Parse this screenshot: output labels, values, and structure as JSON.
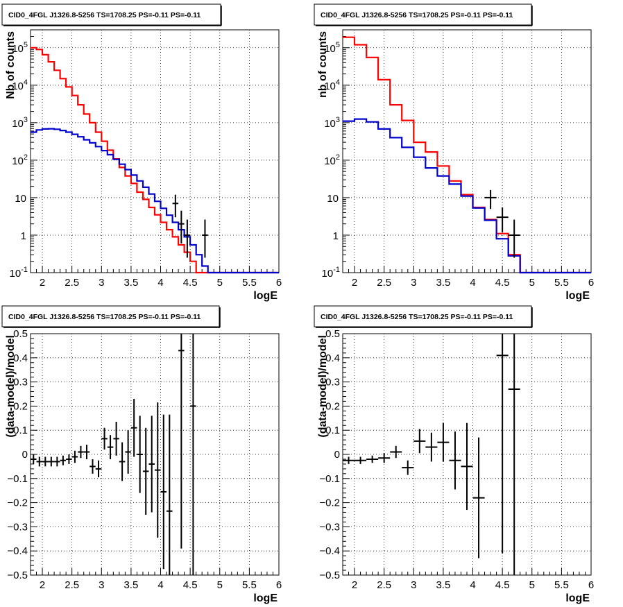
{
  "chart_data": [
    {
      "type": "step-histogram",
      "title": "CID0_4FGL J1326.8-5256 TS=1708.25 PS=-0.11 PS=-0.11",
      "xlabel": "logE",
      "ylabel": "Nb of counts",
      "xlim": [
        1.8,
        6.0
      ],
      "ylim": [
        0.1,
        300000
      ],
      "yscale": "log",
      "grid": true,
      "x_ticks": [
        "2",
        "2.5",
        "3",
        "3.5",
        "4",
        "4.5",
        "5",
        "5.5",
        "6"
      ],
      "y_ticks": [
        "10^-1",
        "1",
        "10",
        "10^2",
        "10^3",
        "10^4",
        "10^5"
      ],
      "bin_edges": [
        1.8,
        1.9,
        2.0,
        2.1,
        2.2,
        2.3,
        2.4,
        2.5,
        2.6,
        2.7,
        2.8,
        2.9,
        3.0,
        3.1,
        3.2,
        3.3,
        3.4,
        3.5,
        3.6,
        3.7,
        3.8,
        3.9,
        4.0,
        4.1,
        4.2,
        4.3,
        4.4,
        4.5,
        4.6,
        4.7,
        4.8,
        4.9,
        5.0,
        5.1,
        5.2,
        5.3,
        5.4,
        5.5,
        5.6,
        5.7,
        5.8,
        5.9,
        6.0
      ],
      "series": [
        {
          "color": "#ff0000",
          "values": [
            100000,
            90000,
            65000,
            42000,
            25000,
            15000,
            9000,
            5300,
            3000,
            1700,
            1000,
            560,
            320,
            185,
            108,
            64,
            38,
            24,
            14,
            9,
            5.5,
            3.5,
            2.2,
            1.4,
            0.9,
            0.55,
            0.35,
            0.2,
            0.1,
            0.1,
            0.1,
            0.1,
            0.1,
            0.1,
            0.1,
            0.1,
            0.1,
            0.1,
            0.1,
            0.1,
            0.1,
            0.1
          ]
        },
        {
          "color": "#0000cc",
          "values": [
            560,
            640,
            680,
            690,
            670,
            620,
            560,
            490,
            420,
            350,
            290,
            230,
            180,
            140,
            105,
            78,
            56,
            40,
            28,
            19,
            12.5,
            8,
            5.2,
            3.4,
            2.2,
            1.4,
            0.9,
            0.55,
            0.3,
            0.15,
            0.1,
            0.1,
            0.1,
            0.1,
            0.1,
            0.1,
            0.1,
            0.1,
            0.1,
            0.1,
            0.1,
            0.1
          ]
        }
      ],
      "data_points": [
        {
          "x": 4.25,
          "y": 7,
          "ylo": 3,
          "yhi": 12
        },
        {
          "x": 4.35,
          "y": 2,
          "ylo": 0.6,
          "yhi": 4.5
        },
        {
          "x": 4.45,
          "y": 1,
          "ylo": 0.25,
          "yhi": 2.6
        },
        {
          "x": 4.75,
          "y": 1,
          "ylo": 0.25,
          "yhi": 2.6
        }
      ]
    },
    {
      "type": "step-histogram",
      "title": "CID0_4FGL J1326.8-5256 TS=1708.25 PS=-0.11 PS=-0.11",
      "xlabel": "logE",
      "ylabel": "nb of counts",
      "xlim": [
        1.8,
        6.0
      ],
      "ylim": [
        0.1,
        300000
      ],
      "yscale": "log",
      "grid": true,
      "x_ticks": [
        "2",
        "2.5",
        "3",
        "3.5",
        "4",
        "4.5",
        "5",
        "5.5",
        "6"
      ],
      "y_ticks": [
        "10^-1",
        "1",
        "10",
        "10^2",
        "10^3",
        "10^4",
        "10^5"
      ],
      "bin_edges": [
        1.8,
        2.0,
        2.2,
        2.4,
        2.6,
        2.8,
        3.0,
        3.2,
        3.4,
        3.6,
        3.8,
        4.0,
        4.2,
        4.4,
        4.6,
        4.8,
        5.0,
        5.2,
        5.4,
        5.6,
        5.8,
        6.0
      ],
      "series": [
        {
          "color": "#ff0000",
          "values": [
            190000,
            120000,
            55000,
            14000,
            3000,
            1150,
            300,
            165,
            70,
            28,
            12,
            5.5,
            2.6,
            1.1,
            0.3,
            0.1,
            0.1,
            0.1,
            0.1,
            0.1,
            0.1
          ]
        },
        {
          "color": "#0000cc",
          "values": [
            1100,
            1250,
            1050,
            680,
            400,
            220,
            120,
            62,
            38,
            23,
            11,
            5.3,
            2.5,
            0.8,
            0.28,
            0.1,
            0.1,
            0.1,
            0.1,
            0.1,
            0.1
          ]
        }
      ],
      "data_points": [
        {
          "x": 4.3,
          "y": 10,
          "ylo": 5,
          "yhi": 16
        },
        {
          "x": 4.5,
          "y": 3,
          "ylo": 1.2,
          "yhi": 5.5
        },
        {
          "x": 4.7,
          "y": 1,
          "ylo": 0.25,
          "yhi": 2.6
        }
      ]
    },
    {
      "type": "scatter-errorbar",
      "title": "CID0_4FGL J1326.8-5256 TS=1708.25 PS=-0.11 PS=-0.11",
      "xlabel": "logE",
      "ylabel": "(data-model)/model",
      "xlim": [
        1.8,
        6.0
      ],
      "ylim": [
        -0.5,
        0.5
      ],
      "grid": true,
      "x_ticks": [
        "2",
        "2.5",
        "3",
        "3.5",
        "4",
        "4.5",
        "5",
        "5.5",
        "6"
      ],
      "y_ticks": [
        "−0.5",
        "−0.4",
        "−0.3",
        "−0.2",
        "−0.1",
        "0",
        "0.1",
        "0.2",
        "0.3",
        "0.4",
        "0.5"
      ],
      "bin_width": 0.1,
      "points": [
        {
          "x": 1.85,
          "y": -0.02,
          "e": 0.02
        },
        {
          "x": 1.95,
          "y": -0.03,
          "e": 0.02
        },
        {
          "x": 2.05,
          "y": -0.03,
          "e": 0.02
        },
        {
          "x": 2.15,
          "y": -0.03,
          "e": 0.02
        },
        {
          "x": 2.25,
          "y": -0.03,
          "e": 0.02
        },
        {
          "x": 2.35,
          "y": -0.025,
          "e": 0.02
        },
        {
          "x": 2.45,
          "y": -0.02,
          "e": 0.02
        },
        {
          "x": 2.55,
          "y": -0.01,
          "e": 0.025
        },
        {
          "x": 2.65,
          "y": 0.01,
          "e": 0.025
        },
        {
          "x": 2.75,
          "y": 0.01,
          "e": 0.03
        },
        {
          "x": 2.85,
          "y": -0.05,
          "e": 0.03
        },
        {
          "x": 2.95,
          "y": -0.06,
          "e": 0.035
        },
        {
          "x": 3.05,
          "y": 0.065,
          "e": 0.045
        },
        {
          "x": 3.15,
          "y": 0.03,
          "e": 0.05
        },
        {
          "x": 3.25,
          "y": 0.065,
          "e": 0.07
        },
        {
          "x": 3.35,
          "y": -0.03,
          "e": 0.08
        },
        {
          "x": 3.45,
          "y": 0.01,
          "e": 0.09
        },
        {
          "x": 3.55,
          "y": 0.11,
          "e": 0.12
        },
        {
          "x": 3.65,
          "y": 0.0,
          "e": 0.16
        },
        {
          "x": 3.75,
          "y": -0.07,
          "e": 0.18
        },
        {
          "x": 3.85,
          "y": -0.04,
          "e": 0.2
        },
        {
          "x": 3.95,
          "y": -0.065,
          "e": 0.28
        },
        {
          "x": 4.05,
          "y": -0.155,
          "e": 0.32
        },
        {
          "x": 4.15,
          "y": -0.235,
          "e": 0.4
        },
        {
          "x": 4.35,
          "y": 0.43,
          "e": 0.82
        },
        {
          "x": 4.55,
          "y": 0.2,
          "e": 0.9
        }
      ]
    },
    {
      "type": "scatter-errorbar",
      "title": "CID0_4FGL J1326.8-5256 TS=1708.25 PS=-0.11 PS=-0.11",
      "xlabel": "logE",
      "ylabel": "(data-model)/model",
      "xlim": [
        1.8,
        6.0
      ],
      "ylim": [
        -0.5,
        0.5
      ],
      "grid": true,
      "x_ticks": [
        "2",
        "2.5",
        "3",
        "3.5",
        "4",
        "4.5",
        "5",
        "5.5",
        "6"
      ],
      "y_ticks": [
        "−0.5",
        "−0.4",
        "−0.3",
        "−0.2",
        "−0.1",
        "0",
        "0.1",
        "0.2",
        "0.3",
        "0.4",
        "0.5"
      ],
      "bin_width": 0.2,
      "points": [
        {
          "x": 1.9,
          "y": -0.025,
          "e": 0.015
        },
        {
          "x": 2.1,
          "y": -0.025,
          "e": 0.015
        },
        {
          "x": 2.3,
          "y": -0.02,
          "e": 0.015
        },
        {
          "x": 2.5,
          "y": -0.015,
          "e": 0.02
        },
        {
          "x": 2.7,
          "y": 0.01,
          "e": 0.025
        },
        {
          "x": 2.9,
          "y": -0.055,
          "e": 0.03
        },
        {
          "x": 3.1,
          "y": 0.055,
          "e": 0.05
        },
        {
          "x": 3.3,
          "y": 0.03,
          "e": 0.06
        },
        {
          "x": 3.5,
          "y": 0.05,
          "e": 0.08
        },
        {
          "x": 3.7,
          "y": -0.025,
          "e": 0.12
        },
        {
          "x": 3.9,
          "y": -0.05,
          "e": 0.18
        },
        {
          "x": 4.1,
          "y": -0.18,
          "e": 0.25
        },
        {
          "x": 4.5,
          "y": 0.41,
          "e": 0.82
        },
        {
          "x": 4.7,
          "y": 0.27,
          "e": 0.9
        }
      ]
    }
  ]
}
